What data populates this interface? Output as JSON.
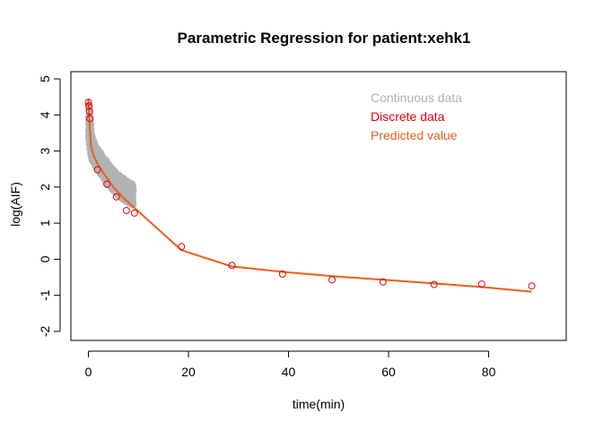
{
  "chart_data": {
    "type": "scatter",
    "title": "Parametric Regression for patient:xehk1",
    "xlabel": "time(min)",
    "ylabel": "log(AIF)",
    "xlim": [
      -3.5,
      95.5
    ],
    "ylim": [
      -2.25,
      5.2
    ],
    "xticks": [
      0,
      20,
      40,
      60,
      80
    ],
    "yticks": [
      -2,
      -1,
      0,
      1,
      2,
      3,
      4,
      5
    ],
    "grid": false,
    "legend_position": "top-right",
    "colors": {
      "continuous": "#b3b3b3",
      "discrete": "#e8000b",
      "predicted": "#e8601c"
    },
    "series": [
      {
        "name": "Continuous data",
        "type": "scatter",
        "band": {
          "x": [
            0.05,
            0.3,
            0.6,
            1.0,
            1.5,
            2.0,
            2.5,
            3.0,
            3.5,
            4.0,
            4.5,
            5.0,
            5.5,
            6.0,
            6.5,
            7.0,
            7.5,
            8.0,
            8.5,
            9.0
          ],
          "upper": [
            4.45,
            4.0,
            3.6,
            3.3,
            3.15,
            3.05,
            2.95,
            2.85,
            2.75,
            2.65,
            2.55,
            2.5,
            2.42,
            2.35,
            2.3,
            2.25,
            2.2,
            2.15,
            2.12,
            2.1
          ],
          "lower": [
            3.3,
            3.0,
            2.8,
            2.65,
            2.55,
            2.45,
            2.35,
            2.25,
            2.15,
            2.05,
            1.98,
            1.9,
            1.82,
            1.75,
            1.7,
            1.65,
            1.6,
            1.56,
            1.52,
            1.5
          ]
        }
      },
      {
        "name": "Discrete data",
        "type": "scatter",
        "x": [
          0.0,
          0.1,
          0.2,
          0.3,
          1.8,
          3.7,
          5.6,
          7.6,
          9.2,
          18.6,
          28.7,
          38.8,
          48.7,
          58.9,
          69.1,
          78.6,
          88.6
        ],
        "y": [
          4.35,
          4.25,
          4.1,
          3.9,
          2.48,
          2.08,
          1.73,
          1.35,
          1.28,
          0.35,
          -0.17,
          -0.41,
          -0.57,
          -0.63,
          -0.7,
          -0.69,
          -0.74
        ]
      },
      {
        "name": "Predicted value",
        "type": "line",
        "x": [
          0,
          0.2,
          0.5,
          1,
          2,
          3,
          4,
          5,
          6,
          7,
          8,
          9,
          18.6,
          28.7,
          38.8,
          48.7,
          58.9,
          69.1,
          78.6,
          88.6
        ],
        "y": [
          4.45,
          3.85,
          3.15,
          2.88,
          2.6,
          2.4,
          2.2,
          2.0,
          1.85,
          1.7,
          1.58,
          1.45,
          0.25,
          -0.2,
          -0.35,
          -0.47,
          -0.57,
          -0.67,
          -0.77,
          -0.9
        ]
      }
    ]
  }
}
